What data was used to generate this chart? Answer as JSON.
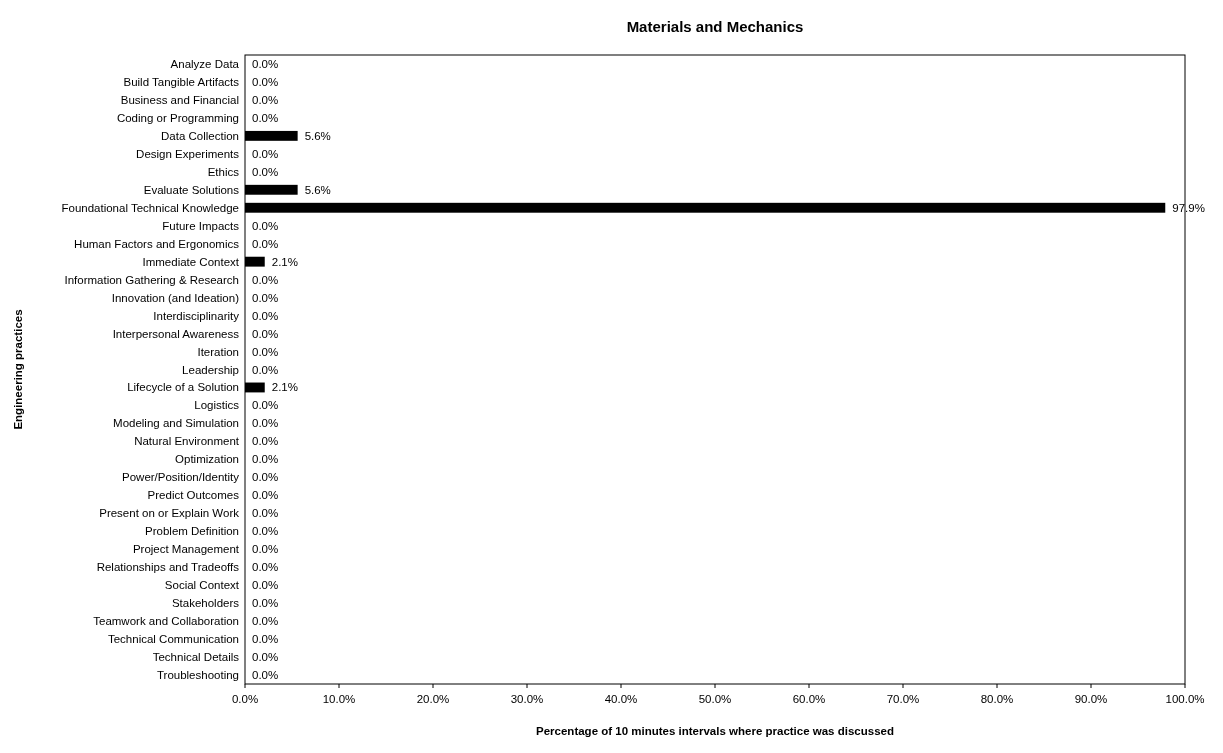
{
  "chart_data": {
    "type": "bar",
    "orientation": "horizontal",
    "title": "Materials and Mechanics",
    "xlabel": "Percentage of 10 minutes intervals where practice was discussed",
    "ylabel": "Engineering practices",
    "categories": [
      "Analyze Data",
      "Build Tangible Artifacts",
      "Business and Financial",
      "Coding or Programming",
      "Data Collection",
      "Design Experiments",
      "Ethics",
      "Evaluate Solutions",
      "Foundational Technical Knowledge",
      "Future Impacts",
      "Human Factors and Ergonomics",
      "Immediate Context",
      "Information Gathering & Research",
      "Innovation (and Ideation)",
      "Interdisciplinarity",
      "Interpersonal Awareness",
      "Iteration",
      "Leadership",
      "Lifecycle of a Solution",
      "Logistics",
      "Modeling and Simulation",
      "Natural Environment",
      "Optimization",
      "Power/Position/Identity",
      "Predict Outcomes",
      "Present on or Explain Work",
      "Problem Definition",
      "Project Management",
      "Relationships and Tradeoffs",
      "Social Context",
      "Stakeholders",
      "Teamwork and Collaboration",
      "Technical Communication",
      "Technical Details",
      "Troubleshooting"
    ],
    "values": [
      0,
      0,
      0,
      0,
      5.6,
      0,
      0,
      5.6,
      97.9,
      0,
      0,
      2.1,
      0,
      0,
      0,
      0,
      0,
      0,
      2.1,
      0,
      0,
      0,
      0,
      0,
      0,
      0,
      0,
      0,
      0,
      0,
      0,
      0,
      0,
      0,
      0
    ],
    "value_labels": [
      "0.0%",
      "0.0%",
      "0.0%",
      "0.0%",
      "5.6%",
      "0.0%",
      "0.0%",
      "5.6%",
      "97.9%",
      "0.0%",
      "0.0%",
      "2.1%",
      "0.0%",
      "0.0%",
      "0.0%",
      "0.0%",
      "0.0%",
      "0.0%",
      "2.1%",
      "0.0%",
      "0.0%",
      "0.0%",
      "0.0%",
      "0.0%",
      "0.0%",
      "0.0%",
      "0.0%",
      "0.0%",
      "0.0%",
      "0.0%",
      "0.0%",
      "0.0%",
      "0.0%",
      "0.0%",
      "0.0%"
    ],
    "color": "#000000",
    "xlim": [
      0,
      100
    ],
    "xticks": [
      {
        "value": 0,
        "label": "0.0%"
      },
      {
        "value": 10,
        "label": "10.0%"
      },
      {
        "value": 20,
        "label": "20.0%"
      },
      {
        "value": 30,
        "label": "30.0%"
      },
      {
        "value": 40,
        "label": "40.0%"
      },
      {
        "value": 50,
        "label": "50.0%"
      },
      {
        "value": 60,
        "label": "60.0%"
      },
      {
        "value": 70,
        "label": "70.0%"
      },
      {
        "value": 80,
        "label": "80.0%"
      },
      {
        "value": 90,
        "label": "90.0%"
      },
      {
        "value": 100,
        "label": "100.0%"
      }
    ],
    "grid": false
  }
}
